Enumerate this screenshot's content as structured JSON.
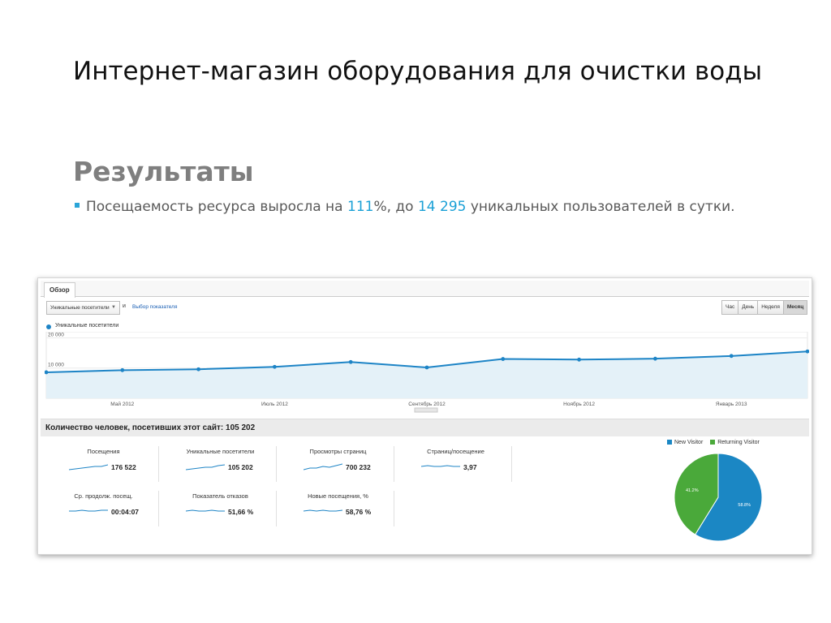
{
  "slide": {
    "title": "Интернет-магазин оборудования для очистки воды",
    "section_heading": "Результаты",
    "bullet": {
      "text_before": "Посещаемость ресурса выросла на ",
      "percent_value": "111",
      "text_middle": "%, до ",
      "users_value": "14 295",
      "text_after": " уникальных пользователей в сутки."
    },
    "colors": {
      "accent": "#1aa0d6",
      "heading_gray": "#7f7f7f"
    }
  },
  "analytics": {
    "tab_label": "Обзор",
    "metric_select": "Уникальные посетители",
    "and_label": "и",
    "choose_metric_link": "Выбор показателя",
    "period_buttons": [
      {
        "label": "Час",
        "active": false
      },
      {
        "label": "День",
        "active": false
      },
      {
        "label": "Неделя",
        "active": false
      },
      {
        "label": "Месяц",
        "active": true
      }
    ],
    "series_label": "Уникальные посетители",
    "summary_title": "Количество человек, посетивших этот сайт: 105 202",
    "stats": [
      {
        "label": "Посещения",
        "value": "176 522"
      },
      {
        "label": "Уникальные посетители",
        "value": "105 202"
      },
      {
        "label": "Просмотры страниц",
        "value": "700 232"
      },
      {
        "label": "Страниц/посещение",
        "value": "3,97"
      },
      {
        "label": "Ср. продолж. посещ.",
        "value": "00:04:07"
      },
      {
        "label": "Показатель отказов",
        "value": "51,66 %"
      },
      {
        "label": "Новые посещения, %",
        "value": "58,76 %"
      }
    ],
    "pie_legend": [
      {
        "label": "New Visitor",
        "color": "#1b87c4"
      },
      {
        "label": "Returning Visitor",
        "color": "#4aa93a"
      }
    ]
  },
  "chart_data": [
    {
      "type": "line",
      "series": [
        {
          "name": "Уникальные посетители",
          "values": [
            8600,
            9300,
            9600,
            10400,
            12000,
            10200,
            13000,
            12800,
            13100,
            14000,
            15500
          ]
        }
      ],
      "x": [
        "2012-04",
        "2012-05",
        "2012-06",
        "2012-07",
        "2012-08",
        "2012-09",
        "2012-10",
        "2012-11",
        "2012-12",
        "2013-01",
        "2013-02"
      ],
      "x_tick_labels": [
        "Май 2012",
        "Июль 2012",
        "Сентябрь 2012",
        "Ноябрь 2012",
        "Январь 2013"
      ],
      "y_tick_labels": [
        "20 000",
        "10 000"
      ],
      "ylim": [
        0,
        22000
      ],
      "grid": true,
      "line_color": "#1d84c6",
      "fill_color": "#e4f1f8"
    },
    {
      "type": "pie",
      "slices": [
        {
          "name": "New Visitor",
          "value": 58.8,
          "label": "58.8%",
          "color": "#1b87c4"
        },
        {
          "name": "Returning Visitor",
          "value": 41.2,
          "label": "41.2%",
          "color": "#4aa93a"
        }
      ],
      "legend": "top"
    }
  ]
}
